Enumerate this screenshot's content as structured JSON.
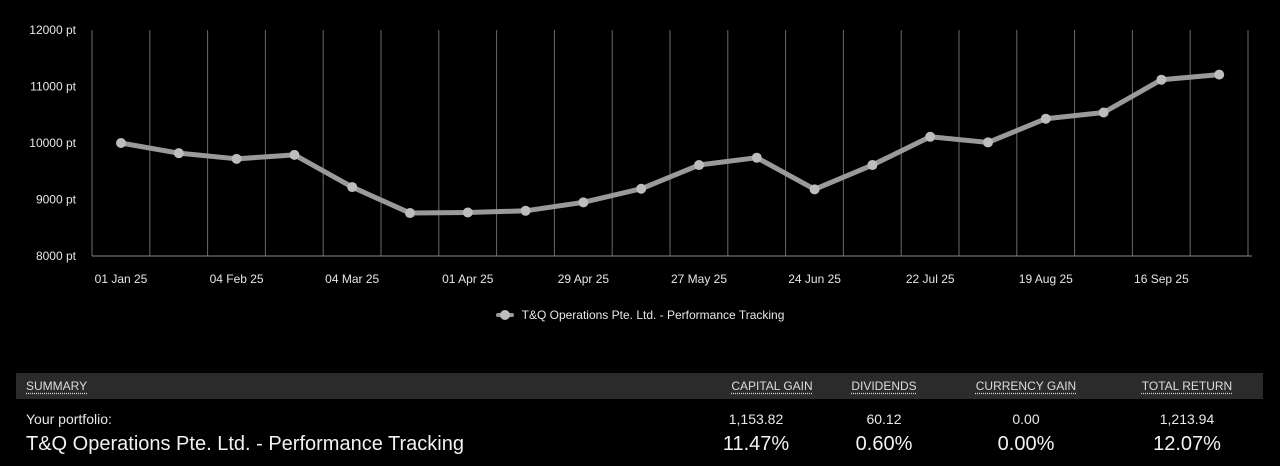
{
  "chart_data": {
    "type": "line",
    "title": "",
    "xlabel": "",
    "ylabel": "",
    "ylim": [
      8000,
      12000
    ],
    "y_ticks": [
      "12000 pt",
      "11000 pt",
      "10000 pt",
      "9000 pt",
      "8000 pt"
    ],
    "y_tick_values": [
      12000,
      11000,
      10000,
      9000,
      8000
    ],
    "x_tick_labels": [
      "01 Jan 25",
      "04 Feb 25",
      "04 Mar 25",
      "01 Apr 25",
      "29 Apr 25",
      "27 May 25",
      "24 Jun 25",
      "22 Jul 25",
      "19 Aug 25",
      "16 Sep 25"
    ],
    "x": [
      "01 Jan 25",
      "15 Jan 25",
      "04 Feb 25",
      "18 Feb 25",
      "04 Mar 25",
      "18 Mar 25",
      "01 Apr 25",
      "15 Apr 25",
      "29 Apr 25",
      "13 May 25",
      "27 May 25",
      "10 Jun 25",
      "24 Jun 25",
      "08 Jul 25",
      "22 Jul 25",
      "05 Aug 25",
      "19 Aug 25",
      "02 Sep 25",
      "16 Sep 25",
      "30 Sep 25"
    ],
    "series": [
      {
        "name": "T&Q Operations Pte. Ltd. - Performance Tracking",
        "color": "#9a9a9a",
        "values": [
          10000,
          9820,
          9720,
          9790,
          9220,
          8760,
          8770,
          8800,
          8950,
          9190,
          9610,
          9740,
          9180,
          9610,
          10110,
          10010,
          10430,
          10540,
          11120,
          11210
        ]
      }
    ],
    "grid": true,
    "legend": "bottom-center"
  },
  "summary": {
    "headers": {
      "label": "SUMMARY",
      "capital_gain": "CAPITAL GAIN",
      "dividends": "DIVIDENDS",
      "currency_gain": "CURRENCY GAIN",
      "total_return": "TOTAL RETURN"
    },
    "portfolio_row": {
      "label": "Your portfolio:",
      "capital_gain": "1,153.82",
      "dividends": "60.12",
      "currency_gain": "0.00",
      "total_return": "1,213.94"
    },
    "tracking_row": {
      "label": "T&Q Operations Pte. Ltd. - Performance Tracking",
      "capital_gain": "11.47%",
      "dividends": "0.60%",
      "currency_gain": "0.00%",
      "total_return": "12.07%"
    }
  }
}
